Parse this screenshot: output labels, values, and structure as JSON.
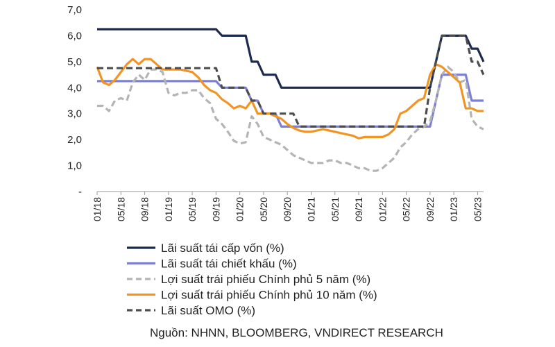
{
  "chart_data": {
    "type": "line",
    "ylim": [
      0,
      7
    ],
    "yticks": [
      "-",
      "1,0",
      "2,0",
      "3,0",
      "4,0",
      "5,0",
      "6,0",
      "7,0"
    ],
    "x_range": [
      "2018-01",
      "2023-06"
    ],
    "xtick_labels": [
      "01/18",
      "05/18",
      "09/18",
      "01/19",
      "05/19",
      "09/19",
      "01/20",
      "05/20",
      "09/20",
      "01/21",
      "05/21",
      "09/21",
      "01/22",
      "05/22",
      "09/22",
      "01/23",
      "05/23"
    ],
    "series": [
      {
        "name": "Lãi suất tái cấp vốn (%)",
        "color": "#1b2a4e",
        "style": "solid",
        "x": [
          "2018-01",
          "2019-09",
          "2019-10",
          "2020-02",
          "2020-03",
          "2020-04",
          "2020-05",
          "2020-07",
          "2020-08",
          "2020-09",
          "2022-09",
          "2022-10",
          "2022-11",
          "2023-03",
          "2023-04",
          "2023-05",
          "2023-06"
        ],
        "y": [
          6.25,
          6.25,
          6.0,
          6.0,
          5.0,
          5.0,
          4.5,
          4.5,
          4.0,
          4.0,
          4.0,
          5.0,
          6.0,
          6.0,
          5.5,
          5.5,
          5.0
        ]
      },
      {
        "name": "Lãi suất tái chiết khấu (%)",
        "color": "#7b7fd8",
        "style": "solid",
        "x": [
          "2018-01",
          "2019-09",
          "2019-10",
          "2020-02",
          "2020-03",
          "2020-04",
          "2020-05",
          "2020-07",
          "2020-08",
          "2020-09",
          "2022-09",
          "2022-10",
          "2022-11",
          "2023-03",
          "2023-04",
          "2023-05",
          "2023-06"
        ],
        "y": [
          4.25,
          4.25,
          4.0,
          4.0,
          3.5,
          3.5,
          3.0,
          3.0,
          2.5,
          2.5,
          2.5,
          3.5,
          4.5,
          4.5,
          3.5,
          3.5,
          3.5
        ]
      },
      {
        "name": "Lợi suất trái phiếu Chính phủ 5 năm (%)",
        "color": "#b4b4b4",
        "style": "dashed",
        "x": [
          "2018-01",
          "2018-02",
          "2018-03",
          "2018-04",
          "2018-05",
          "2018-06",
          "2018-07",
          "2018-08",
          "2018-09",
          "2018-10",
          "2018-11",
          "2018-12",
          "2019-01",
          "2019-02",
          "2019-03",
          "2019-04",
          "2019-05",
          "2019-06",
          "2019-07",
          "2019-08",
          "2019-09",
          "2019-10",
          "2019-11",
          "2019-12",
          "2020-01",
          "2020-02",
          "2020-03",
          "2020-04",
          "2020-05",
          "2020-06",
          "2020-07",
          "2020-08",
          "2020-09",
          "2020-10",
          "2020-11",
          "2020-12",
          "2021-01",
          "2021-02",
          "2021-03",
          "2021-04",
          "2021-05",
          "2021-06",
          "2021-07",
          "2021-08",
          "2021-09",
          "2021-10",
          "2021-11",
          "2021-12",
          "2022-01",
          "2022-02",
          "2022-03",
          "2022-04",
          "2022-05",
          "2022-06",
          "2022-07",
          "2022-08",
          "2022-09",
          "2022-10",
          "2022-11",
          "2022-12",
          "2023-01",
          "2023-02",
          "2023-03",
          "2023-04",
          "2023-05",
          "2023-06"
        ],
        "y": [
          3.3,
          3.3,
          3.1,
          3.5,
          3.6,
          3.5,
          4.2,
          4.5,
          4.3,
          4.7,
          4.7,
          4.6,
          3.8,
          3.7,
          3.8,
          3.8,
          3.9,
          3.9,
          3.6,
          3.4,
          2.8,
          2.6,
          2.3,
          1.95,
          1.85,
          1.9,
          2.9,
          2.6,
          2.1,
          2.0,
          1.9,
          1.8,
          1.6,
          1.4,
          1.3,
          1.2,
          1.1,
          1.1,
          1.1,
          1.2,
          1.2,
          1.1,
          1.1,
          1.0,
          0.9,
          0.9,
          0.8,
          0.8,
          0.9,
          1.1,
          1.3,
          1.7,
          1.9,
          2.2,
          2.4,
          2.5,
          2.7,
          3.5,
          4.5,
          4.8,
          4.6,
          4.2,
          4.3,
          2.8,
          2.5,
          2.4
        ]
      },
      {
        "name": "Lợi suất trái phiếu Chính phủ 10 năm (%)",
        "color": "#f29423",
        "style": "solid",
        "x": [
          "2018-01",
          "2018-02",
          "2018-03",
          "2018-04",
          "2018-05",
          "2018-06",
          "2018-07",
          "2018-08",
          "2018-09",
          "2018-10",
          "2018-11",
          "2018-12",
          "2019-01",
          "2019-02",
          "2019-03",
          "2019-04",
          "2019-05",
          "2019-06",
          "2019-07",
          "2019-08",
          "2019-09",
          "2019-10",
          "2019-11",
          "2019-12",
          "2020-01",
          "2020-02",
          "2020-03",
          "2020-04",
          "2020-05",
          "2020-06",
          "2020-07",
          "2020-08",
          "2020-09",
          "2020-10",
          "2020-11",
          "2020-12",
          "2021-01",
          "2021-02",
          "2021-03",
          "2021-04",
          "2021-05",
          "2021-06",
          "2021-07",
          "2021-08",
          "2021-09",
          "2021-10",
          "2021-11",
          "2021-12",
          "2022-01",
          "2022-02",
          "2022-03",
          "2022-04",
          "2022-05",
          "2022-06",
          "2022-07",
          "2022-08",
          "2022-09",
          "2022-10",
          "2022-11",
          "2022-12",
          "2023-01",
          "2023-02",
          "2023-03",
          "2023-04",
          "2023-05",
          "2023-06"
        ],
        "y": [
          4.8,
          4.2,
          4.1,
          4.3,
          4.6,
          4.9,
          5.1,
          4.9,
          5.1,
          5.1,
          4.9,
          4.7,
          4.7,
          4.7,
          4.7,
          4.65,
          4.6,
          4.4,
          4.1,
          3.9,
          3.8,
          3.55,
          3.4,
          3.2,
          3.3,
          3.2,
          3.5,
          3.0,
          3.0,
          3.0,
          2.9,
          2.8,
          2.6,
          2.45,
          2.35,
          2.3,
          2.3,
          2.35,
          2.4,
          2.35,
          2.3,
          2.25,
          2.2,
          2.15,
          2.05,
          2.1,
          2.1,
          2.1,
          2.1,
          2.2,
          2.4,
          3.0,
          3.1,
          3.3,
          3.5,
          3.6,
          4.5,
          4.9,
          4.8,
          4.6,
          4.4,
          4.2,
          3.2,
          3.2,
          3.1,
          3.1
        ]
      },
      {
        "name": "Lãi suất OMO (%)",
        "color": "#4d4d4d",
        "style": "dashed",
        "x": [
          "2018-01",
          "2018-02",
          "2019-09",
          "2019-10",
          "2020-02",
          "2020-03",
          "2020-04",
          "2020-05",
          "2020-07",
          "2020-08",
          "2020-09",
          "2020-10",
          "2020-11",
          "2022-08",
          "2022-09",
          "2022-10",
          "2022-11",
          "2023-03",
          "2023-04",
          "2023-05",
          "2023-06"
        ],
        "y": [
          4.75,
          4.75,
          4.75,
          4.0,
          4.0,
          3.5,
          3.5,
          3.0,
          3.0,
          3.0,
          3.0,
          3.0,
          2.5,
          2.5,
          4.0,
          5.0,
          6.0,
          6.0,
          5.0,
          5.0,
          4.5
        ]
      }
    ]
  },
  "source": "Nguồn: NHNN, BLOOMBERG, VNDIRECT RESEARCH"
}
